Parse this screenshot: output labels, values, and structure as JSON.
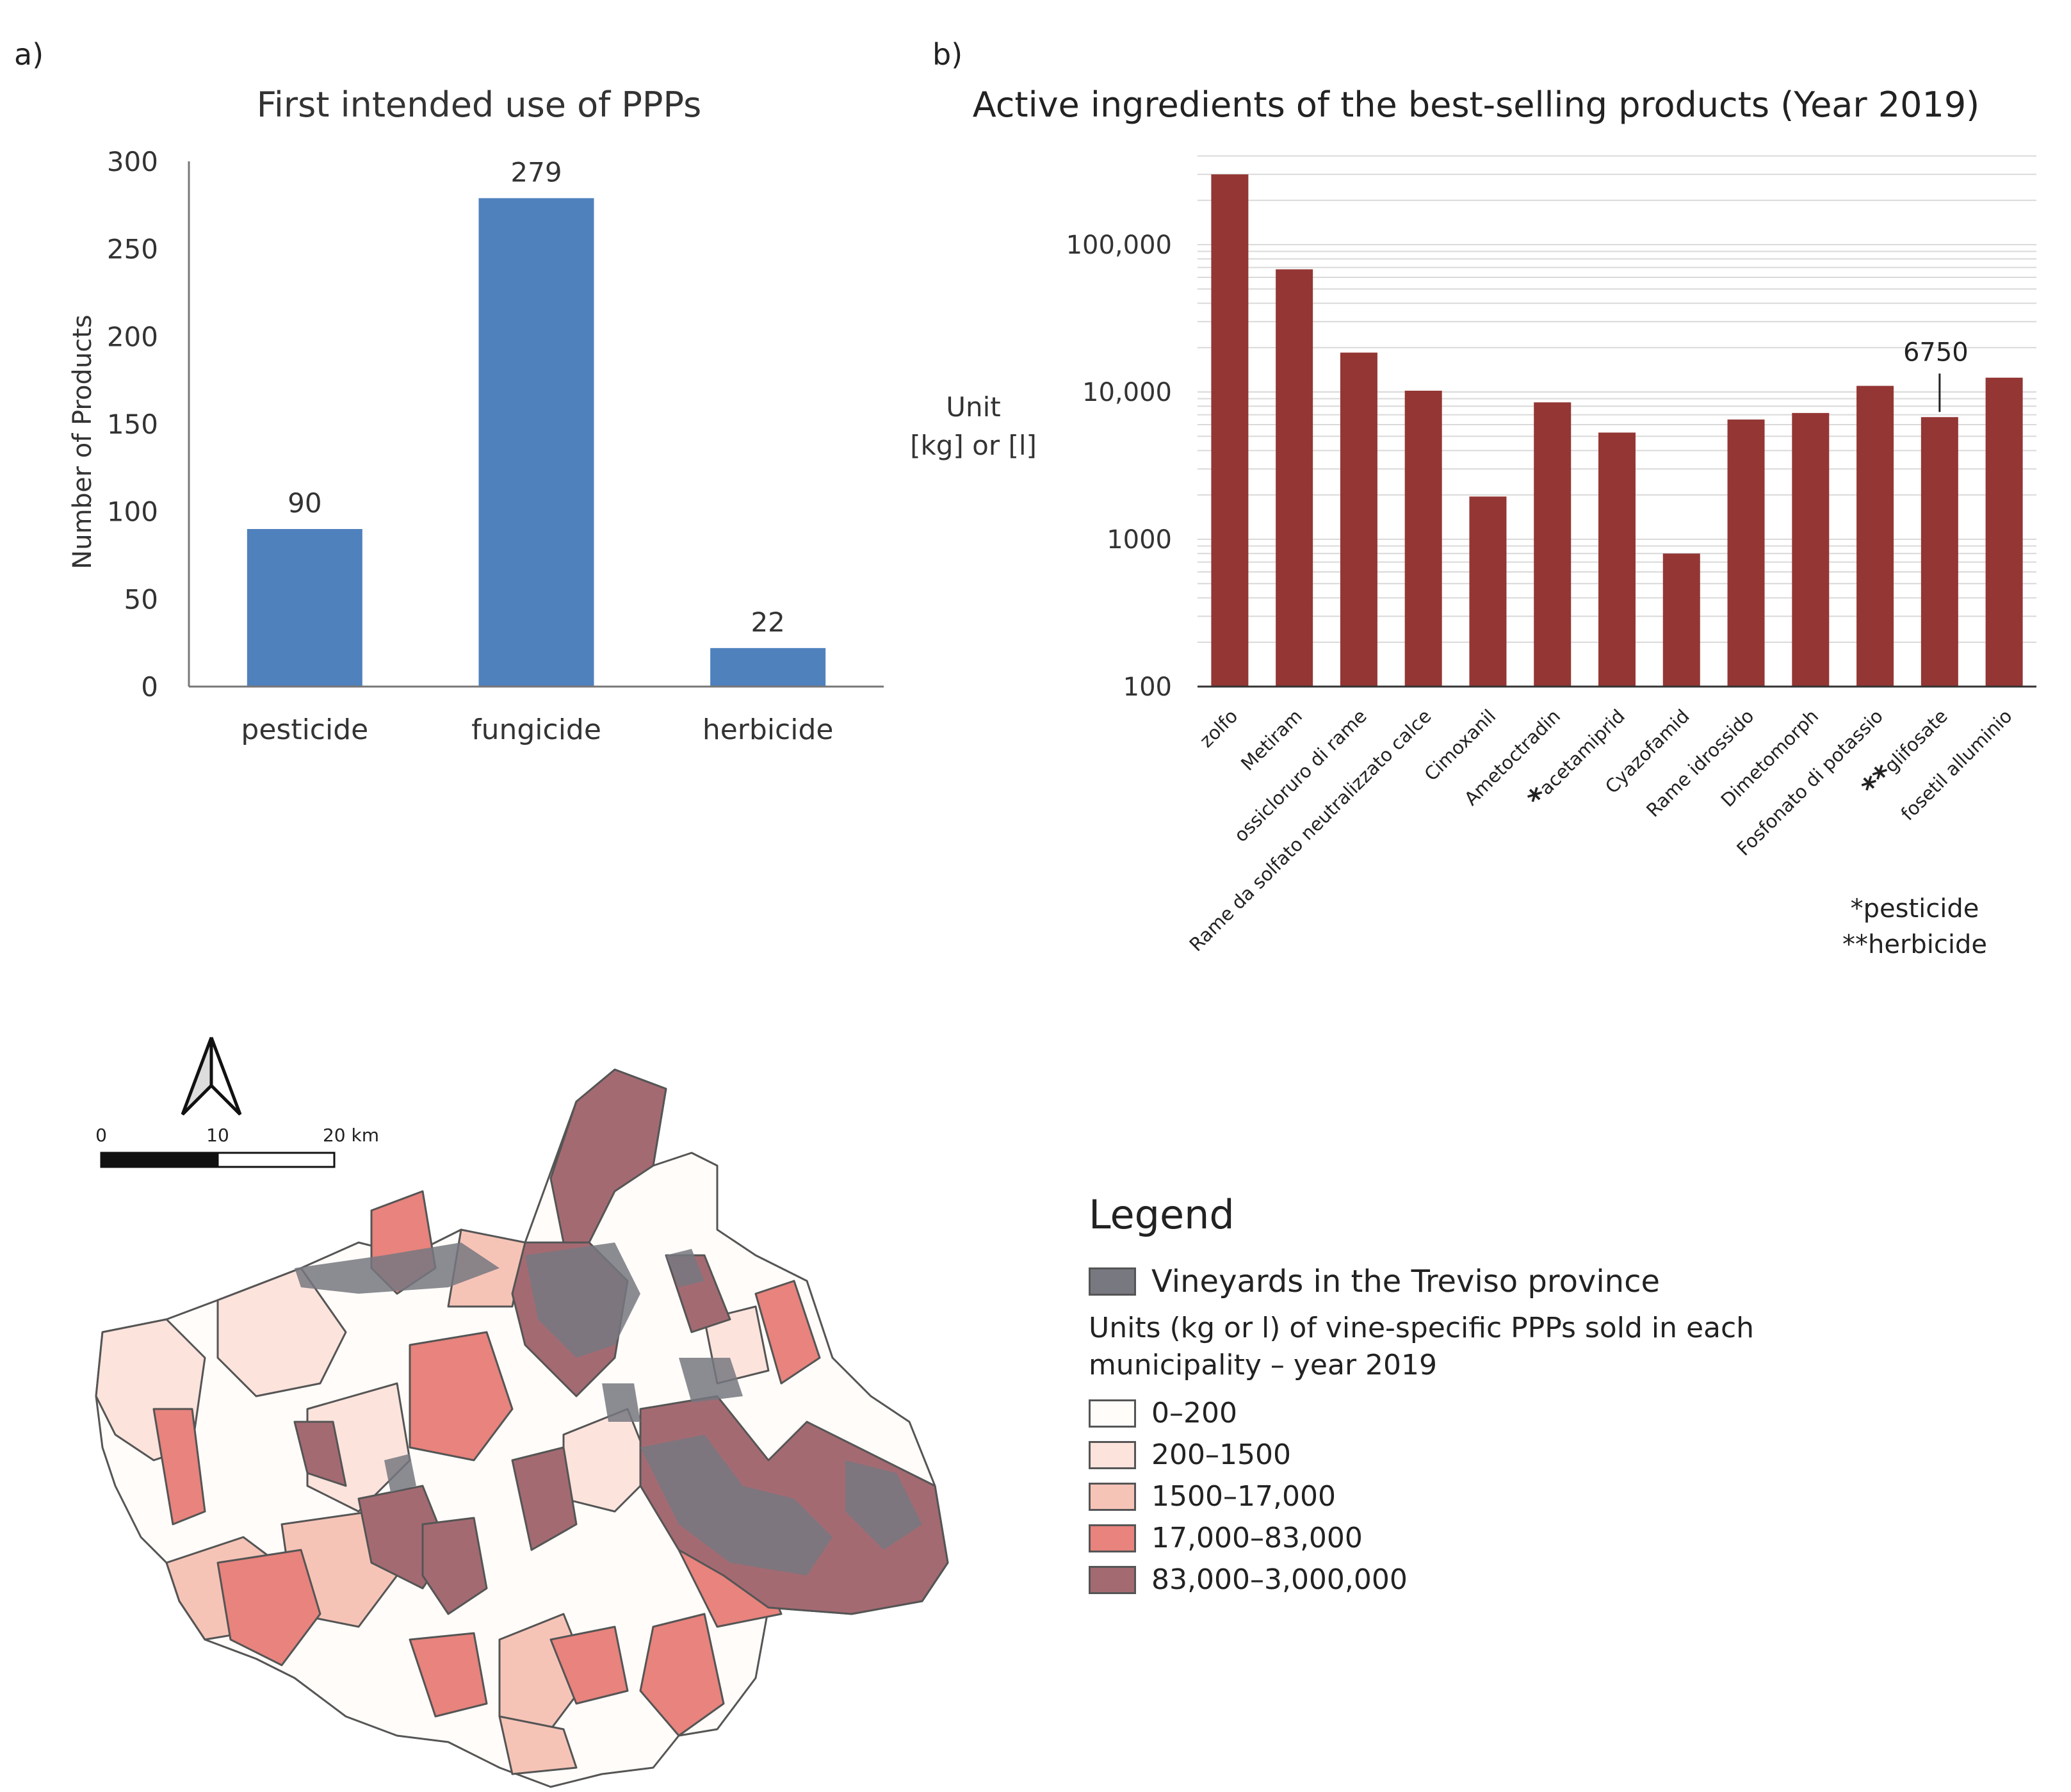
{
  "chart_data": [
    {
      "panel": "a)",
      "type": "bar",
      "title": "First intended use of PPPs",
      "ylabel": "Number of Products",
      "xlabel": "",
      "categories": [
        "pesticide",
        "fungicide",
        "herbicide"
      ],
      "values": [
        90,
        279,
        22
      ],
      "data_labels": [
        "90",
        "279",
        "22"
      ],
      "ylim": [
        0,
        300
      ],
      "yticks": [
        0,
        50,
        100,
        150,
        200,
        250,
        300
      ],
      "color": "#4F81BD",
      "grid": false
    },
    {
      "panel": "b)",
      "type": "bar",
      "title": "Active ingredients of the best-selling products (Year 2019)",
      "ylabel": "Unit\n[kg] or [l]",
      "ylabel_lines": [
        "Unit",
        "[kg] or [l]"
      ],
      "xlabel": "",
      "yscale": "log",
      "ylim": [
        100,
        400000
      ],
      "yticks": [
        100,
        1000,
        10000,
        100000
      ],
      "ytick_labels": [
        "100",
        "1000",
        "10,000",
        "100,000"
      ],
      "categories": [
        "zolfo",
        "Metiram",
        "ossicloruro di rame",
        "Rame da solfato neutralizzato calce",
        "Cimoxanil",
        "Ametoctradin",
        "acetamiprid",
        "Cyazofamid",
        "Rame idrossido",
        "Dimetomorph",
        "Fosfonato di potassio",
        "glifosate",
        "fosetil alluminio"
      ],
      "category_markers": [
        "",
        "",
        "",
        "",
        "",
        "",
        "*",
        "",
        "",
        "",
        "",
        "**",
        ""
      ],
      "values": [
        300000,
        68000,
        18500,
        10200,
        1950,
        8500,
        5300,
        800,
        6500,
        7200,
        11000,
        6750,
        12500
      ],
      "annotation": {
        "category": "glifosate",
        "text": "6750"
      },
      "footnotes": [
        "*pesticide",
        "**herbicide"
      ],
      "color": "#943634",
      "grid": true
    }
  ],
  "panel_labels": {
    "a": "a)",
    "b": "b)"
  },
  "map": {
    "scale_labels": [
      "0",
      "10",
      "20 km"
    ],
    "legend": {
      "title": "Legend",
      "vineyard_label": "Vineyards in the Treviso province",
      "vineyard_color": "#777880",
      "subtitle_line1": "Units (kg or l) of vine-specific PPPs sold in each",
      "subtitle_line2": "municipality – year 2019",
      "classes": [
        {
          "label": "0–200",
          "color": "#FFFCF9"
        },
        {
          "label": "200–1500",
          "color": "#FCE3DC"
        },
        {
          "label": "1500–17,000",
          "color": "#F6C4B7"
        },
        {
          "label": "17,000–83,000",
          "color": "#E8837D"
        },
        {
          "label": "83,000–3,000,000",
          "color": "#A46A72"
        }
      ]
    }
  }
}
